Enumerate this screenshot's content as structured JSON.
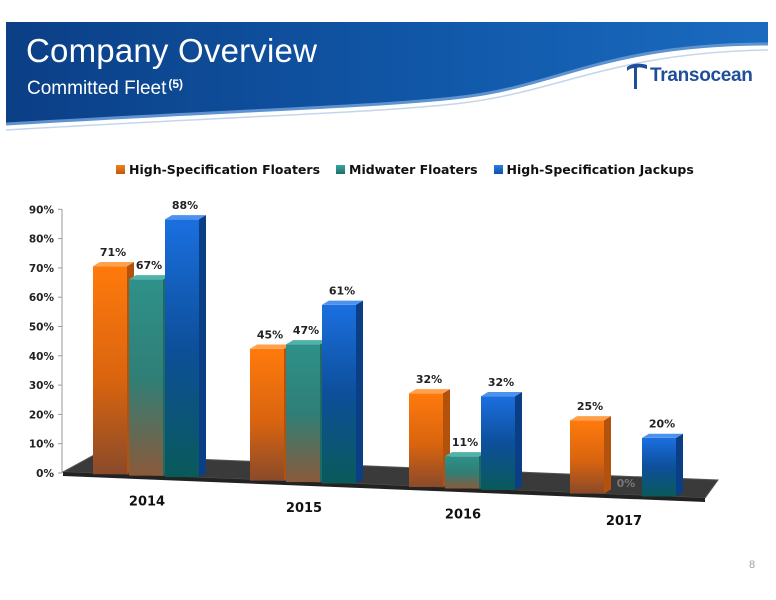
{
  "header": {
    "title": "Company Overview",
    "subtitle": "Committed Fleet",
    "footnote_ref": "(5)",
    "logo_text": "Transocean"
  },
  "page_number": "8",
  "colors": {
    "banner": "#0d4f9c",
    "high_spec_floaters": "#e86d0c",
    "midwater_floaters": "#2b8c84",
    "high_spec_jackups": "#1462c9"
  },
  "chart_data": {
    "type": "bar",
    "title": "",
    "xlabel": "",
    "ylabel": "",
    "categories": [
      "2014",
      "2015",
      "2016",
      "2017"
    ],
    "series": [
      {
        "name": "High-Specification Floaters",
        "values": [
          71,
          45,
          32,
          25
        ],
        "labels": [
          "71%",
          "45%",
          "32%",
          "25%"
        ]
      },
      {
        "name": "Midwater Floaters",
        "values": [
          67,
          47,
          11,
          0
        ],
        "labels": [
          "67%",
          "47%",
          "11%",
          "0%"
        ]
      },
      {
        "name": "High-Specification Jackups",
        "values": [
          88,
          61,
          32,
          20
        ],
        "labels": [
          "88%",
          "61%",
          "32%",
          "20%"
        ]
      }
    ],
    "ylim": [
      0,
      90
    ],
    "yticks": [
      "0%",
      "10%",
      "20%",
      "30%",
      "40%",
      "50%",
      "60%",
      "70%",
      "80%",
      "90%"
    ],
    "legend_position": "top",
    "grid": false
  }
}
